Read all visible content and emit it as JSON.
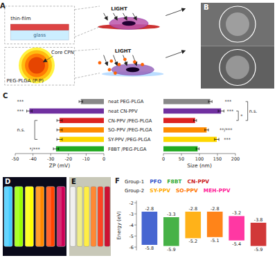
{
  "chart_data": [
    {
      "type": "diagram",
      "title": "A",
      "annotations": [
        "thin-film",
        "glass",
        "LIGHT",
        "Core CPN",
        "PEG-PLGA (P-P)",
        "LIGHT"
      ]
    },
    {
      "type": "image",
      "title": "B"
    },
    {
      "type": "bar",
      "orientation": "horizontal",
      "title": "C",
      "categories": [
        "neat PEG-PLGA",
        "neat CN-PPV",
        "CN-PPV /PEG-PLGA",
        "SO-PPV /PEG-PLGA",
        "SY-PPV /PEG-PLGA",
        "F8BT /PEG-PLGA"
      ],
      "values": [
        -13,
        -42,
        -25,
        -25,
        -25,
        -27
      ],
      "errors": [
        1.0,
        1.5,
        1.5,
        1.5,
        1.5,
        1.5
      ],
      "colors": [
        "#888888",
        "#7030A0",
        "#DD2222",
        "#FF8C00",
        "#FFD700",
        "#22AA22"
      ],
      "xlabel": "ZP (mV)",
      "xlim": [
        -50,
        0
      ],
      "xticks": [
        -50,
        -40,
        -30,
        -20,
        -10,
        0
      ],
      "tick_labels": "x",
      "annotations": [
        "***",
        "***",
        "n.s.",
        "*/***"
      ]
    },
    {
      "type": "bar",
      "orientation": "horizontal",
      "values": [
        130,
        160,
        88,
        120,
        148,
        95
      ],
      "errors": [
        5,
        8,
        4,
        5,
        6,
        4
      ],
      "colors": [
        "#888888",
        "#7030A0",
        "#DD2222",
        "#FF8C00",
        "#FFD700",
        "#22AA22"
      ],
      "xlabel": "Size (nm)",
      "xlim": [
        0,
        200
      ],
      "xticks": [
        0,
        50,
        100,
        150,
        200
      ],
      "tick_labels": "x",
      "annotations": [
        "***",
        "*",
        "**/***",
        "***",
        "n.s.",
        "***"
      ]
    },
    {
      "type": "image",
      "title": "D",
      "colors": [
        "#44CCFF",
        "#99FF00",
        "#FFFF00",
        "#FF8800",
        "#FF4400",
        "#CC0055"
      ]
    },
    {
      "type": "image",
      "title": "E",
      "colors": [
        "#F0F0EE",
        "#F0EE88",
        "#FFEE44",
        "#FF8833",
        "#FF4422",
        "#CC1133"
      ]
    },
    {
      "type": "bar",
      "title": "F",
      "categories": [
        "PFO",
        "F8BT",
        "SY-PPV",
        "SO-PPV",
        "MEH-PPV",
        "CN-PPV"
      ],
      "lumo": [
        -2.8,
        -3.3,
        -2.8,
        -2.8,
        -3.2,
        -3.8
      ],
      "homo": [
        -5.8,
        -5.9,
        -5.2,
        -5.1,
        -5.4,
        -5.9
      ],
      "colors": [
        "#3355CC",
        "#33AA33",
        "#FFAA00",
        "#FF7700",
        "#FF2299",
        "#CC2222"
      ],
      "groups": [
        "Group-1",
        "Group-1",
        "Group-2",
        "Group-2",
        "Group-2",
        "Group-1"
      ],
      "ylabel": "Energy (eV)",
      "ylim": [
        -6.3,
        -1.8
      ],
      "yticks": [
        -2,
        -3,
        -4,
        -5,
        -6
      ],
      "data_labels": true,
      "tick_labels": "y"
    }
  ]
}
